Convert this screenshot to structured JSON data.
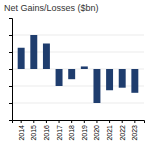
{
  "chart_data": {
    "type": "bar",
    "title": "Net Gains/Losses ($bn)",
    "categories": [
      "2014",
      "2015",
      "2016",
      "2017",
      "2018",
      "2019",
      "2020",
      "2021",
      "2022",
      "2023"
    ],
    "values": [
      2.5,
      4.0,
      3.0,
      -2.0,
      -1.2,
      0.3,
      -4.0,
      -2.5,
      -2.2,
      -2.8
    ],
    "color": "#1f3d6e",
    "ylim": [
      -6,
      6
    ],
    "yticks": [
      -4,
      -2,
      0,
      2,
      4
    ],
    "grid": true,
    "tick_labels": "x"
  }
}
